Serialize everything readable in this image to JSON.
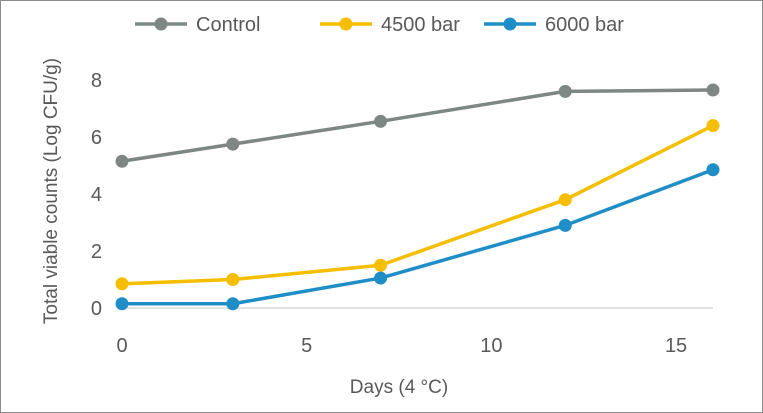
{
  "chart_data": {
    "type": "line",
    "title": "",
    "xlabel": "Days (4 °C)",
    "ylabel": "Total viable counts (Log CFU/g)",
    "xlim": [
      0,
      16
    ],
    "ylim": [
      0,
      8
    ],
    "xticks": [
      0,
      5,
      10,
      15
    ],
    "yticks": [
      0,
      2,
      4,
      6,
      8
    ],
    "grid": false,
    "legend_position": "top",
    "series": [
      {
        "name": "Control",
        "color": "#7f8784",
        "x": [
          0,
          3,
          7,
          12,
          16
        ],
        "y": [
          5.15,
          5.75,
          6.55,
          7.6,
          7.65
        ]
      },
      {
        "name": "4500 bar",
        "color": "#f5be00",
        "x": [
          0,
          3,
          7,
          12,
          16
        ],
        "y": [
          0.85,
          1.0,
          1.5,
          3.8,
          6.4
        ]
      },
      {
        "name": "6000 bar",
        "color": "#1f8ec7",
        "x": [
          0,
          3,
          7,
          12,
          16
        ],
        "y": [
          0.15,
          0.15,
          1.05,
          2.9,
          4.85
        ]
      }
    ]
  }
}
